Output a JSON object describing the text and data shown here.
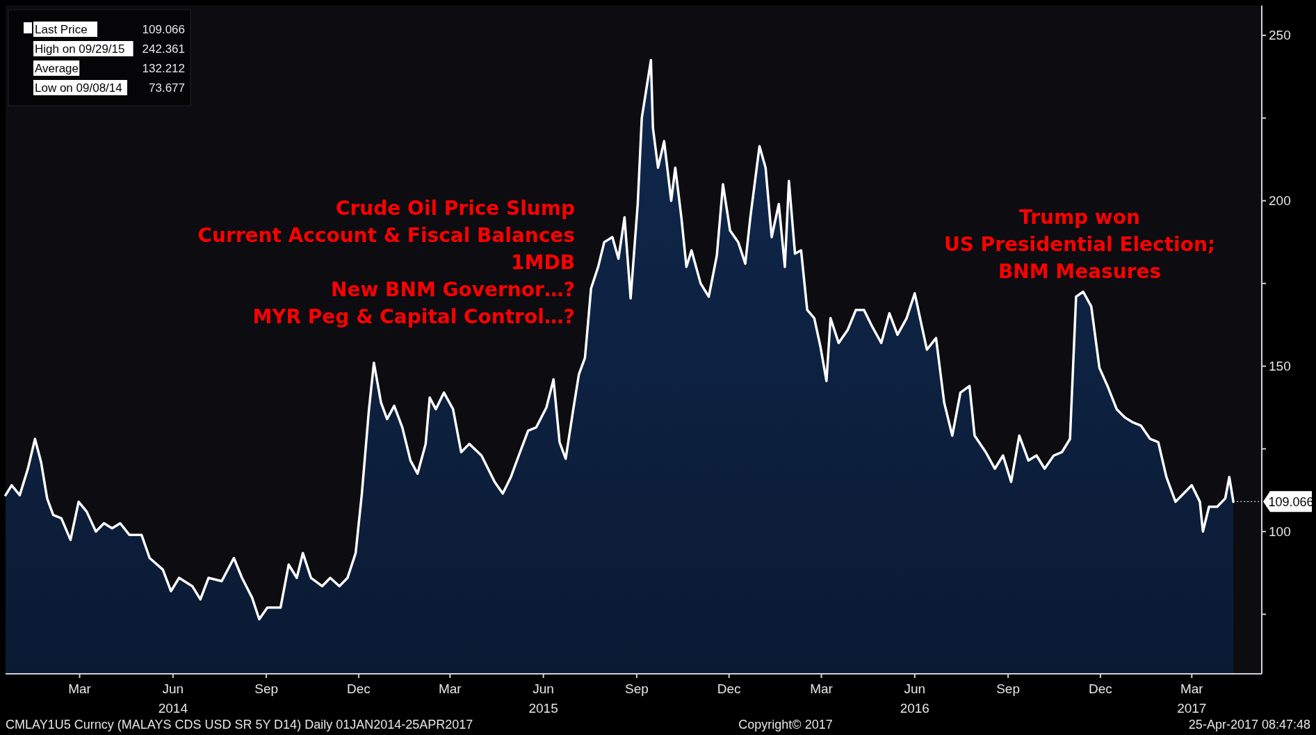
{
  "chart_data": {
    "type": "area",
    "legend": "top left",
    "grid": false,
    "xlim": [
      "2014-01-01",
      "2017-05-23"
    ],
    "xticks": [
      {
        "value": "2014-03-15",
        "label": "Mar"
      },
      {
        "value": "2014-06-15",
        "label": "Jun\n2014"
      },
      {
        "value": "2014-09-15",
        "label": "Sep"
      },
      {
        "value": "2014-12-15",
        "label": "Dec"
      },
      {
        "value": "2015-03-15",
        "label": "Mar"
      },
      {
        "value": "2015-06-15",
        "label": "Jun\n2015"
      },
      {
        "value": "2015-09-15",
        "label": "Sep"
      },
      {
        "value": "2015-12-15",
        "label": "Dec"
      },
      {
        "value": "2016-03-15",
        "label": "Mar"
      },
      {
        "value": "2016-06-15",
        "label": "Jun\n2016"
      },
      {
        "value": "2016-09-15",
        "label": "Sep"
      },
      {
        "value": "2016-12-15",
        "label": "Dec"
      },
      {
        "value": "2017-03-15",
        "label": "Mar\n2017"
      }
    ],
    "ylim": [
      57,
      259
    ],
    "yticks": [
      {
        "value": 75,
        "label": null
      },
      100,
      {
        "value": 125,
        "label": null
      },
      150,
      {
        "value": 175,
        "label": null
      },
      200,
      {
        "value": 225,
        "label": null
      },
      250
    ],
    "series": [
      {
        "name": "Last Price",
        "color": "#ffffff",
        "x": [
          "2014-01-01",
          "2014-01-07",
          "2014-01-15",
          "2014-01-23",
          "2014-01-30",
          "2014-02-05",
          "2014-02-11",
          "2014-02-17",
          "2014-02-25",
          "2014-03-06",
          "2014-03-14",
          "2014-03-22",
          "2014-03-31",
          "2014-04-08",
          "2014-04-16",
          "2014-04-24",
          "2014-05-03",
          "2014-05-15",
          "2014-05-23",
          "2014-06-05",
          "2014-06-13",
          "2014-06-21",
          "2014-07-04",
          "2014-07-12",
          "2014-07-20",
          "2014-08-02",
          "2014-08-14",
          "2014-08-22",
          "2014-09-01",
          "2014-09-08",
          "2014-09-16",
          "2014-09-29",
          "2014-10-07",
          "2014-10-15",
          "2014-10-21",
          "2014-10-29",
          "2014-11-09",
          "2014-11-17",
          "2014-11-26",
          "2014-12-04",
          "2014-12-12",
          "2014-12-18",
          "2014-12-25",
          "2014-12-30",
          "2015-01-06",
          "2015-01-12",
          "2015-01-19",
          "2015-01-27",
          "2015-02-04",
          "2015-02-11",
          "2015-02-19",
          "2015-02-23",
          "2015-03-01",
          "2015-03-09",
          "2015-03-18",
          "2015-03-26",
          "2015-04-03",
          "2015-04-15",
          "2015-04-28",
          "2015-05-06",
          "2015-05-14",
          "2015-05-23",
          "2015-05-31",
          "2015-06-08",
          "2015-06-18",
          "2015-06-25",
          "2015-07-01",
          "2015-07-07",
          "2015-07-14",
          "2015-07-20",
          "2015-07-26",
          "2015-08-01",
          "2015-08-08",
          "2015-08-14",
          "2015-08-22",
          "2015-08-28",
          "2015-09-03",
          "2015-09-09",
          "2015-09-16",
          "2015-09-20",
          "2015-09-29",
          "2015-10-01",
          "2015-10-06",
          "2015-10-12",
          "2015-10-19",
          "2015-10-23",
          "2015-10-29",
          "2015-11-03",
          "2015-11-08",
          "2015-11-17",
          "2015-11-25",
          "2015-12-03",
          "2015-12-09",
          "2015-12-16",
          "2015-12-24",
          "2015-12-31",
          "2016-01-05",
          "2016-01-14",
          "2016-01-20",
          "2016-01-26",
          "2016-02-02",
          "2016-02-08",
          "2016-02-12",
          "2016-02-18",
          "2016-02-24",
          "2016-03-01",
          "2016-03-08",
          "2016-03-14",
          "2016-03-20",
          "2016-03-24",
          "2016-04-01",
          "2016-04-10",
          "2016-04-18",
          "2016-04-26",
          "2016-05-04",
          "2016-05-13",
          "2016-05-21",
          "2016-05-29",
          "2016-06-07",
          "2016-06-15",
          "2016-06-22",
          "2016-06-27",
          "2016-07-06",
          "2016-07-14",
          "2016-07-22",
          "2016-07-30",
          "2016-08-08",
          "2016-08-13",
          "2016-08-24",
          "2016-09-02",
          "2016-09-10",
          "2016-09-18",
          "2016-09-26",
          "2016-10-05",
          "2016-10-13",
          "2016-10-21",
          "2016-10-30",
          "2016-11-07",
          "2016-11-15",
          "2016-11-21",
          "2016-11-28",
          "2016-12-06",
          "2016-12-14",
          "2016-12-22",
          "2016-12-31",
          "2017-01-08",
          "2017-01-16",
          "2017-01-24",
          "2017-02-02",
          "2017-02-10",
          "2017-02-18",
          "2017-02-27",
          "2017-03-07",
          "2017-03-15",
          "2017-03-23",
          "2017-03-26",
          "2017-04-01",
          "2017-04-09",
          "2017-04-17",
          "2017-04-21",
          "2017-04-25"
        ],
        "values": [
          111,
          114,
          111,
          119,
          128,
          121,
          110,
          105,
          104,
          97.5,
          109,
          106,
          100,
          102.5,
          101,
          102.5,
          99,
          99,
          92,
          88.5,
          82,
          86,
          83.5,
          79.5,
          86,
          85,
          92,
          86,
          80,
          73.5,
          77,
          77,
          90,
          86,
          93.5,
          86,
          83.5,
          86,
          83.5,
          86,
          93.5,
          111,
          136.5,
          151,
          139,
          134,
          138,
          131.5,
          121.5,
          117.5,
          126.5,
          140.5,
          137,
          142,
          137,
          124,
          126.5,
          123,
          115,
          111.5,
          116.5,
          124,
          130.5,
          131.5,
          137.5,
          146,
          127,
          122,
          136,
          147.5,
          152.5,
          173.5,
          180,
          187.5,
          189,
          182.5,
          195,
          170.5,
          199,
          225,
          242.5,
          222,
          210,
          218,
          200,
          210,
          195,
          180,
          185,
          175,
          171,
          183.5,
          205,
          191,
          187.5,
          181,
          195,
          216.5,
          210,
          189,
          199,
          180,
          206,
          184,
          185,
          167,
          164.5,
          156,
          145.5,
          164.5,
          157,
          161,
          167,
          167,
          162,
          157,
          166,
          159.5,
          164.5,
          172,
          162,
          155,
          158.5,
          139,
          129,
          142,
          144,
          129,
          124,
          119,
          123,
          115,
          129,
          121.5,
          123,
          119,
          123,
          124,
          128,
          171,
          172.5,
          168,
          149.5,
          144,
          137,
          134.5,
          133,
          132,
          128,
          127,
          116.5,
          109,
          111.5,
          114,
          109,
          100,
          107.5,
          107.5,
          110,
          116.5,
          109
        ]
      }
    ],
    "annotations": [
      {
        "text": "109.066",
        "x": "2017-04-25",
        "y": 109.066
      },
      "High on 09/29/15",
      "242.361",
      "Average",
      "132.212",
      "Low on 09/08/14",
      "73.677",
      "Crude Oil Price Slump\nCurrent Account & Fiscal Balances\n1MDB\nNew BNM Governor…?\nMYR Peg & Capital Control…?",
      "Trump won\nUS Presidential Election;\nBNM Measures",
      "CMLAY1U5 Curncy (MALAYS CDS USD SR 5Y D14)  Daily 01JAN2014-25APR2017",
      "Copyright© 2017",
      "25-Apr-2017 08:47:48"
    ]
  }
}
